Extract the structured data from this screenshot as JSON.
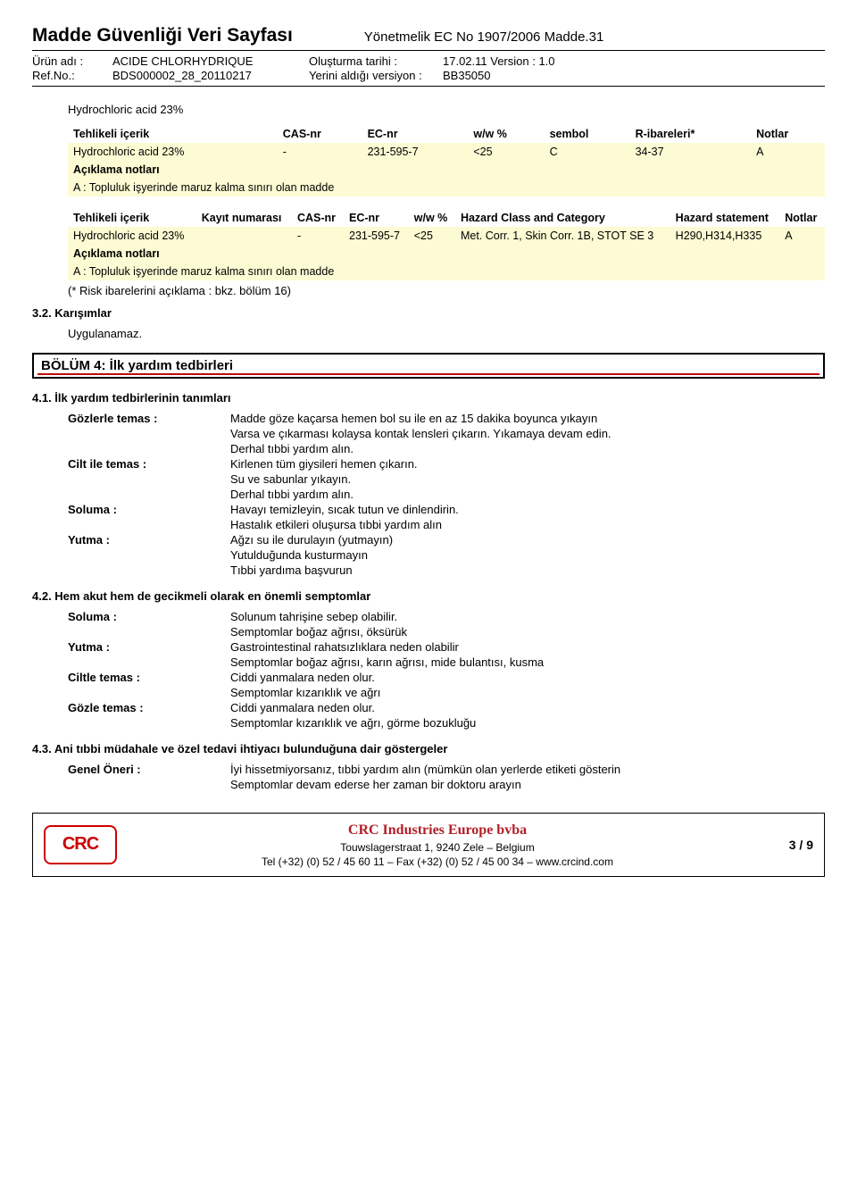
{
  "header": {
    "doc_title": "Madde Güvenliği Veri Sayfası",
    "regulation": "Yönetmelik EC No 1907/2006 Madde.31",
    "meta": {
      "product_label": "Ürün adı :",
      "product_value": "ACIDE CHLORHYDRIQUE",
      "refno_label": "Ref.No.:",
      "refno_value": "BDS000002_28_20110217",
      "created_label": "Oluşturma tarihi :",
      "created_value": "17.02.11 Version : 1.0",
      "replaces_label": "Yerini aldığı versiyon :",
      "replaces_value": "BB35050"
    }
  },
  "section_intro": "Hydrochloric acid 23%",
  "table1": {
    "headers": [
      "Tehlikeli içerik",
      "CAS-nr",
      "EC-nr",
      "w/w %",
      "sembol",
      "R-ibareleri*",
      "Notlar"
    ],
    "row": [
      "Hydrochloric acid 23%",
      "-",
      "231-595-7",
      "<25",
      "C",
      "34-37",
      "A"
    ],
    "note_title": "Açıklama notları",
    "note_text": "A : Topluluk işyerinde maruz kalma sınırı olan madde"
  },
  "table2": {
    "headers": [
      "Tehlikeli içerik",
      "Kayıt numarası",
      "CAS-nr",
      "EC-nr",
      "w/w %",
      "Hazard Class and Category",
      "Hazard statement",
      "Notlar"
    ],
    "row": [
      "Hydrochloric acid 23%",
      "",
      "-",
      "231-595-7",
      "<25",
      "Met. Corr. 1, Skin Corr. 1B, STOT SE 3",
      "H290,H314,H335",
      "A"
    ],
    "note_title": "Açıklama notları",
    "note_text": "A : Topluluk işyerinde maruz kalma sınırı olan madde",
    "risk_note": "(* Risk ibarelerini açıklama : bkz. bölüm 16)"
  },
  "sec32": {
    "heading": "3.2. Karışımlar",
    "text": "Uygulanamaz."
  },
  "section4": {
    "title": "BÖLÜM 4: İlk yardım tedbirleri"
  },
  "sec41": {
    "heading": "4.1. İlk yardım tedbirlerinin tanımları",
    "items": [
      {
        "k": "Gözlerle temas :",
        "v": "Madde göze kaçarsa hemen bol su ile en az 15 dakika boyunca yıkayın\nVarsa ve çıkarması kolaysa kontak lensleri çıkarın. Yıkamaya devam edin.\nDerhal tıbbi yardım alın."
      },
      {
        "k": "Cilt ile temas :",
        "v": "Kirlenen tüm giysileri hemen çıkarın.\nSu ve sabunlar yıkayın.\nDerhal tıbbi yardım alın."
      },
      {
        "k": "Soluma :",
        "v": "Havayı temizleyin, sıcak tutun ve dinlendirin.\nHastalık etkileri oluşursa tıbbi yardım alın"
      },
      {
        "k": "Yutma :",
        "v": "Ağzı su ile durulayın (yutmayın)\nYutulduğunda kusturmayın\nTıbbi yardıma başvurun"
      }
    ]
  },
  "sec42": {
    "heading": "4.2. Hem akut hem de gecikmeli olarak en önemli semptomlar",
    "items": [
      {
        "k": "Soluma :",
        "v": "Solunum tahrişine sebep olabilir.\nSemptomlar boğaz ağrısı, öksürük"
      },
      {
        "k": "Yutma :",
        "v": "Gastrointestinal rahatsızlıklara neden olabilir\nSemptomlar boğaz ağrısı, karın ağrısı, mide bulantısı, kusma"
      },
      {
        "k": "Ciltle temas :",
        "v": "Ciddi yanmalara neden olur.\nSemptomlar kızarıklık ve ağrı"
      },
      {
        "k": "Gözle temas :",
        "v": "Ciddi yanmalara neden olur.\nSemptomlar kızarıklık ve ağrı, görme bozukluğu"
      }
    ]
  },
  "sec43": {
    "heading": "4.3. Ani tıbbi müdahale ve özel tedavi ihtiyacı bulunduğuna dair göstergeler",
    "items": [
      {
        "k": "Genel Öneri :",
        "v": "İyi hissetmiyorsanız, tıbbi yardım alın (mümkün olan yerlerde etiketi gösterin\nSemptomlar devam ederse her zaman bir doktoru arayın"
      }
    ]
  },
  "footer": {
    "logo": "CRC",
    "org": "CRC Industries Europe bvba",
    "addr": "Touwslagerstraat 1, 9240 Zele – Belgium",
    "contact": "Tel (+32) (0) 52 / 45 60 11 – Fax (+32) (0) 52 / 45 00 34 – www.crcind.com",
    "page": "3 / 9"
  }
}
